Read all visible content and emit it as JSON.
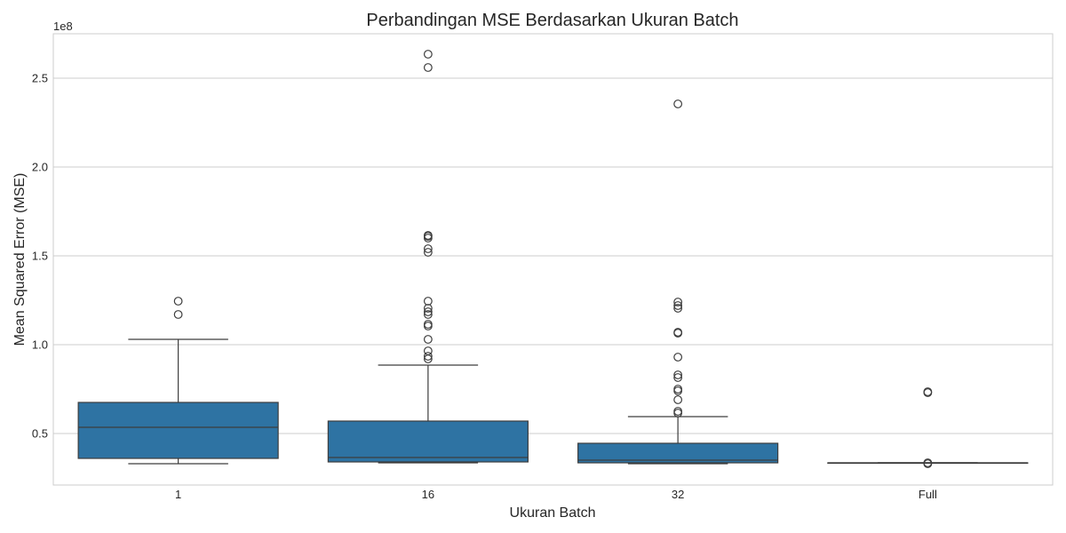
{
  "chart_data": {
    "type": "box",
    "title": "Perbandingan MSE Berdasarkan Ukuran Batch",
    "xlabel": "Ukuran Batch",
    "ylabel": "Mean Squared Error (MSE)",
    "y_offset_label": "1e8",
    "ylim": [
      0.21,
      2.75
    ],
    "grid": true,
    "color": "#2e73a3",
    "line_color": "#3d3d3d",
    "y_ticks": [
      {
        "value": 0.5,
        "label": "0.5"
      },
      {
        "value": 1.0,
        "label": "1.0"
      },
      {
        "value": 1.5,
        "label": "1.5"
      },
      {
        "value": 2.0,
        "label": "2.0"
      },
      {
        "value": 2.5,
        "label": "2.5"
      }
    ],
    "categories": [
      "1",
      "16",
      "32",
      "Full"
    ],
    "boxes": [
      {
        "category": "1",
        "whisker_low": 0.33,
        "q1": 0.36,
        "median": 0.535,
        "q3": 0.675,
        "whisker_high": 1.03,
        "outliers": [
          1.17,
          1.245
        ]
      },
      {
        "category": "16",
        "whisker_low": 0.335,
        "q1": 0.34,
        "median": 0.365,
        "q3": 0.57,
        "whisker_high": 0.885,
        "outliers": [
          0.92,
          0.935,
          0.965,
          1.03,
          1.105,
          1.115,
          1.17,
          1.185,
          1.205,
          1.245,
          1.52,
          1.54,
          1.6,
          1.61,
          1.615,
          2.56,
          2.635
        ]
      },
      {
        "category": "32",
        "whisker_low": 0.33,
        "q1": 0.335,
        "median": 0.35,
        "q3": 0.445,
        "whisker_high": 0.595,
        "outliers": [
          0.615,
          0.625,
          0.69,
          0.74,
          0.75,
          0.815,
          0.83,
          0.93,
          1.065,
          1.07,
          1.205,
          1.22,
          1.24,
          2.355
        ]
      },
      {
        "category": "Full",
        "whisker_low": 0.335,
        "q1": 0.335,
        "median": 0.335,
        "q3": 0.335,
        "whisker_high": 0.335,
        "outliers": [
          0.33,
          0.335,
          0.73,
          0.735
        ]
      }
    ]
  }
}
